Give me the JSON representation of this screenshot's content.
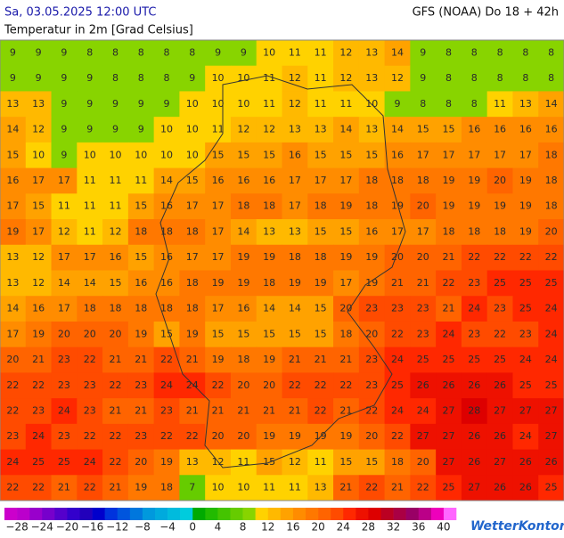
{
  "header": {
    "datetime": "Sa, 03.05.2025 12:00 UTC",
    "model": "GFS (NOAA) Do 18 + 42h",
    "title": "Temperatur in 2m [Grad Celsius]"
  },
  "map": {
    "type": "grid-field",
    "rows": [
      [
        9,
        9,
        9,
        8,
        8,
        8,
        8,
        8,
        9,
        9,
        10,
        11,
        11,
        12,
        13,
        14,
        9,
        8,
        8,
        8,
        8,
        8
      ],
      [
        9,
        9,
        9,
        9,
        8,
        8,
        8,
        9,
        10,
        10,
        11,
        12,
        11,
        12,
        13,
        12,
        9,
        8,
        8,
        8,
        8,
        8
      ],
      [
        13,
        13,
        9,
        9,
        9,
        9,
        9,
        10,
        10,
        10,
        11,
        12,
        11,
        11,
        10,
        9,
        8,
        8,
        8,
        11,
        13,
        14
      ],
      [
        14,
        12,
        9,
        9,
        9,
        9,
        10,
        10,
        11,
        12,
        12,
        13,
        13,
        14,
        13,
        14,
        15,
        15,
        16,
        16,
        16,
        16
      ],
      [
        15,
        10,
        9,
        10,
        10,
        10,
        10,
        10,
        15,
        15,
        15,
        16,
        15,
        15,
        15,
        16,
        17,
        17,
        17,
        17,
        17,
        18
      ],
      [
        16,
        17,
        17,
        11,
        11,
        11,
        14,
        15,
        16,
        16,
        16,
        17,
        17,
        17,
        18,
        18,
        18,
        19,
        19,
        20,
        19,
        18
      ],
      [
        17,
        15,
        11,
        11,
        11,
        15,
        16,
        17,
        17,
        18,
        18,
        17,
        18,
        19,
        18,
        19,
        20,
        19,
        19,
        19,
        19,
        18
      ],
      [
        19,
        17,
        12,
        11,
        12,
        18,
        18,
        18,
        17,
        14,
        13,
        13,
        15,
        15,
        16,
        17,
        17,
        18,
        18,
        18,
        19,
        20
      ],
      [
        13,
        12,
        17,
        17,
        16,
        15,
        16,
        17,
        17,
        19,
        19,
        18,
        18,
        19,
        19,
        20,
        20,
        21,
        22,
        22,
        22,
        22
      ],
      [
        13,
        12,
        14,
        14,
        15,
        16,
        16,
        18,
        19,
        19,
        18,
        19,
        19,
        17,
        19,
        21,
        21,
        22,
        23,
        25,
        25,
        25
      ],
      [
        14,
        16,
        17,
        18,
        18,
        18,
        18,
        18,
        17,
        16,
        14,
        14,
        15,
        20,
        23,
        23,
        23,
        21,
        24,
        23,
        25,
        24
      ],
      [
        17,
        19,
        20,
        20,
        20,
        19,
        15,
        19,
        15,
        15,
        15,
        15,
        15,
        18,
        20,
        22,
        23,
        24,
        23,
        22,
        23,
        24
      ],
      [
        20,
        21,
        23,
        22,
        21,
        21,
        22,
        21,
        19,
        18,
        19,
        21,
        21,
        21,
        23,
        24,
        25,
        25,
        25,
        25,
        24,
        24
      ],
      [
        22,
        22,
        23,
        23,
        22,
        23,
        24,
        24,
        22,
        20,
        20,
        22,
        22,
        22,
        23,
        25,
        26,
        26,
        26,
        26,
        25,
        25
      ],
      [
        22,
        23,
        24,
        23,
        21,
        21,
        23,
        21,
        21,
        21,
        21,
        21,
        22,
        21,
        22,
        24,
        24,
        27,
        28,
        27,
        27,
        27
      ],
      [
        23,
        24,
        23,
        22,
        22,
        23,
        22,
        22,
        20,
        20,
        19,
        19,
        19,
        19,
        20,
        22,
        27,
        27,
        26,
        26,
        24,
        27
      ],
      [
        24,
        25,
        25,
        24,
        22,
        20,
        19,
        13,
        12,
        11,
        15,
        12,
        11,
        15,
        15,
        18,
        20,
        27,
        26,
        27,
        26,
        26
      ],
      [
        22,
        22,
        21,
        22,
        21,
        19,
        18,
        7,
        10,
        10,
        11,
        11,
        13,
        21,
        22,
        21,
        22,
        25,
        27,
        26,
        26,
        25
      ]
    ]
  },
  "colorbar": {
    "lim": [
      -30,
      42
    ],
    "colors": [
      "#cc00cc",
      "#bb00cc",
      "#9900cc",
      "#7700cc",
      "#5500cc",
      "#3300cc",
      "#2200bb",
      "#0000cc",
      "#0033dd",
      "#0055dd",
      "#0077dd",
      "#0099dd",
      "#00aadd",
      "#00bbdd",
      "#00ccdd",
      "#00aa00",
      "#22bb00",
      "#44c400",
      "#66cc00",
      "#88d400",
      "#ffd200",
      "#ffb900",
      "#ffa200",
      "#ff8c00",
      "#ff7800",
      "#ff6400",
      "#ff4b00",
      "#ff2800",
      "#ee1100",
      "#dd0000",
      "#bb0022",
      "#aa0044",
      "#990066",
      "#bb0088",
      "#ee00bb",
      "#ff66ff"
    ],
    "ticks": [
      {
        "value": -28,
        "label": "−28"
      },
      {
        "value": -24,
        "label": "−24"
      },
      {
        "value": -20,
        "label": "−20"
      },
      {
        "value": -16,
        "label": "−16"
      },
      {
        "value": -12,
        "label": "−12"
      },
      {
        "value": -8,
        "label": "−8"
      },
      {
        "value": -4,
        "label": "−4"
      },
      0,
      4,
      8,
      12,
      16,
      20,
      24,
      28,
      32,
      36,
      40
    ]
  },
  "logo": "WetterKontor"
}
